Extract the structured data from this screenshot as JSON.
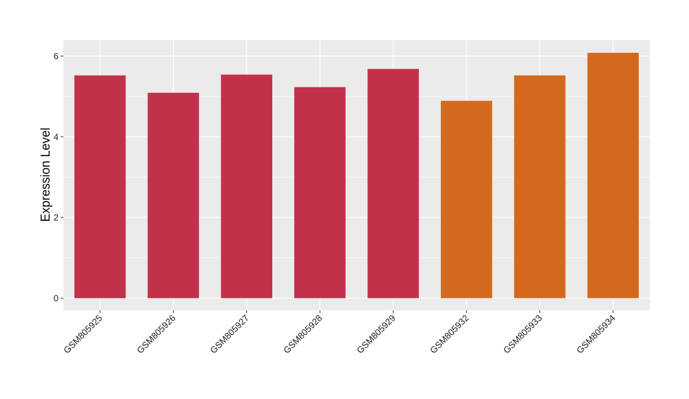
{
  "chart_data": {
    "type": "bar",
    "ylabel": "Expression Level",
    "xlabel": "",
    "ylim": [
      -0.3,
      6.4
    ],
    "y_ticks": [
      0,
      2,
      4,
      6
    ],
    "grid": true,
    "categories": [
      "GSM805925",
      "GSM805926",
      "GSM805927",
      "GSM805928",
      "GSM805929",
      "GSM805932",
      "GSM805933",
      "GSM805934"
    ],
    "values": [
      5.52,
      5.09,
      5.54,
      5.23,
      5.68,
      4.89,
      5.52,
      6.08
    ],
    "colors": [
      "#c1314a",
      "#c1314a",
      "#c1314a",
      "#c1314a",
      "#c1314a",
      "#d2691e",
      "#d2691e",
      "#d2691e"
    ]
  }
}
